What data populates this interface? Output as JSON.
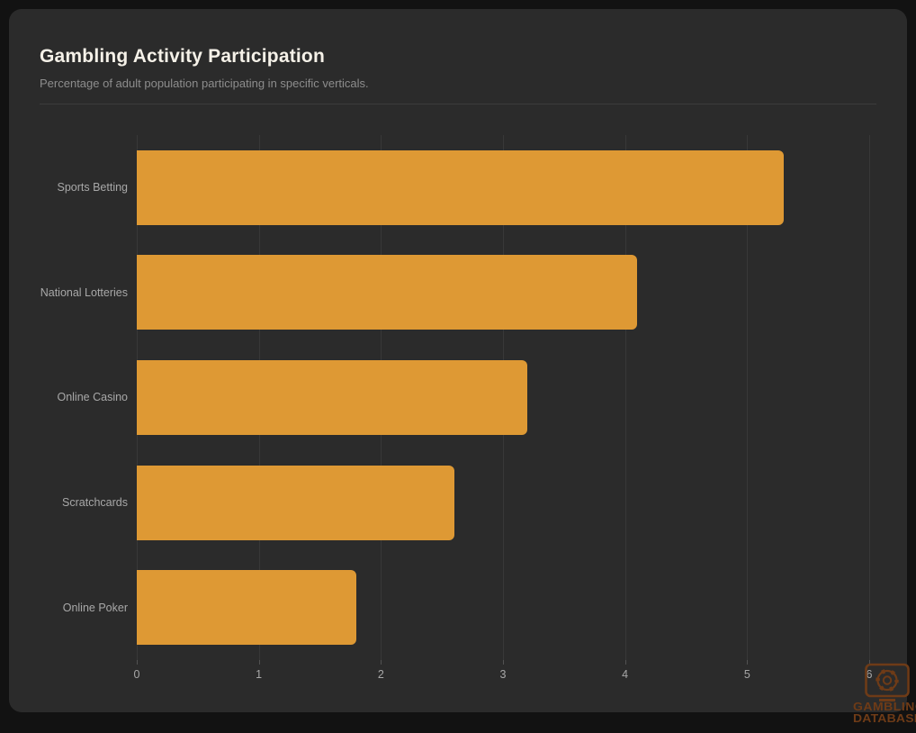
{
  "header": {
    "title": "Gambling Activity Participation",
    "subtitle": "Percentage of adult population participating in specific verticals."
  },
  "chart_data": {
    "type": "bar",
    "orientation": "horizontal",
    "title": "Gambling Activity Participation",
    "categories": [
      "Sports Betting",
      "National Lotteries",
      "Online Casino",
      "Scratchcards",
      "Online Poker"
    ],
    "values": [
      5.3,
      4.1,
      3.2,
      2.6,
      1.8
    ],
    "xlabel": "",
    "ylabel": "",
    "xlim": [
      0,
      6
    ],
    "xticks": [
      0,
      1,
      2,
      3,
      4,
      5,
      6
    ],
    "grid": "vertical-only",
    "legend": "none",
    "bar_color": "#de9934"
  },
  "watermark": {
    "line1": "GAMBLING",
    "line2": "DATABASES",
    "icon": "monitor-poker-chip-icon",
    "color": "#6e3b17"
  },
  "colors": {
    "page_bg": "#121212",
    "card_bg": "#2b2b2b",
    "bar": "#de9934",
    "gridline": "#383838",
    "title_text": "#f5f1e8",
    "subtitle_text": "#8d8d8d",
    "axis_text": "#a8a8a8",
    "divider": "#3c3c3c"
  }
}
